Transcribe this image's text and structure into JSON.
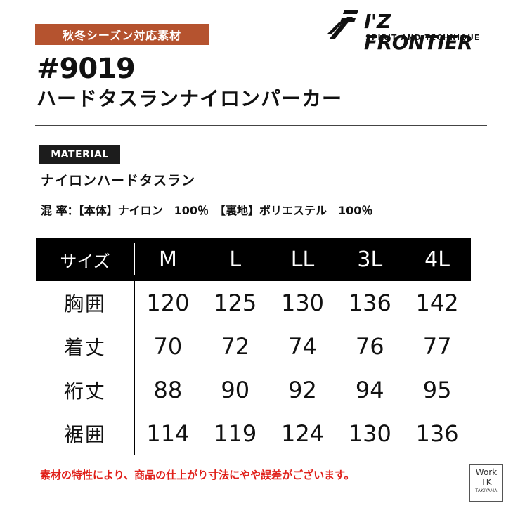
{
  "header": {
    "season_badge": "秋冬シーズン対応素材",
    "product_code": "#9019",
    "product_name": "ハードタスランナイロンパーカー"
  },
  "brand": {
    "name": "I'Z FRONTIER",
    "tagline": "SPIRIT AND TECHNIQUE",
    "logo_icon": "iz-frontier-logo-icon"
  },
  "material": {
    "label": "MATERIAL",
    "value": "ナイロンハードタスラン",
    "composition": "混 率：【本体】ナイロン　100％　【裏地】ポリエステル　100％"
  },
  "size_table": {
    "header_label": "サイズ",
    "sizes": [
      "M",
      "L",
      "LL",
      "3L",
      "4L"
    ],
    "rows": [
      {
        "label": "胸囲",
        "values": [
          "120",
          "125",
          "130",
          "136",
          "142"
        ]
      },
      {
        "label": "着丈",
        "values": [
          "70",
          "72",
          "74",
          "76",
          "77"
        ]
      },
      {
        "label": "裄丈",
        "values": [
          "88",
          "90",
          "92",
          "94",
          "95"
        ]
      },
      {
        "label": "裾囲",
        "values": [
          "114",
          "119",
          "124",
          "130",
          "136"
        ]
      }
    ]
  },
  "notice": "素材の特性により、商品の仕上がり寸法にやや誤差がございます。",
  "shop_badge": {
    "line1": "Work",
    "line2": "TK",
    "line3": "TAKIYAMA"
  },
  "colors": {
    "badge_bg": "#b5532f",
    "notice": "#e0201a",
    "header_bg": "#000000"
  }
}
